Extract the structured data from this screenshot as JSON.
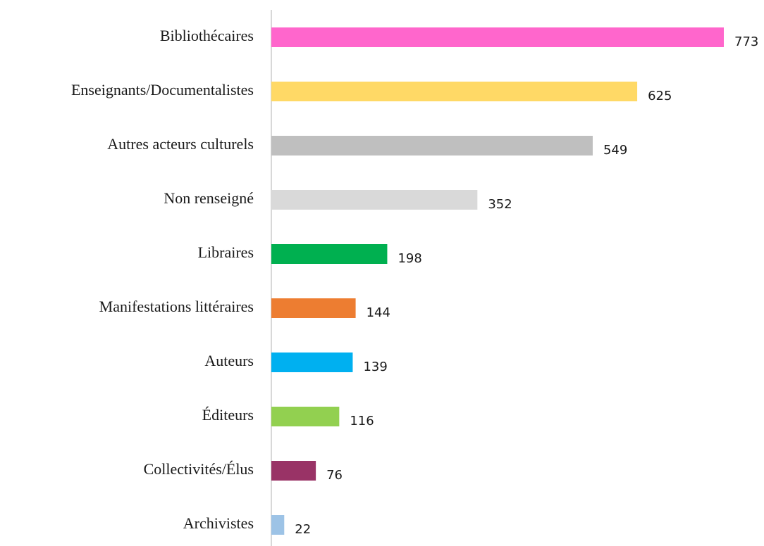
{
  "chart_data": {
    "type": "bar",
    "orientation": "horizontal",
    "categories": [
      "Bibliothécaires",
      "Enseignants/Documentalistes",
      "Autres acteurs culturels",
      "Non renseigné",
      "Libraires",
      "Manifestations littéraires",
      "Auteurs",
      "Éditeurs",
      "Collectivités/Élus",
      "Archivistes"
    ],
    "values": [
      773,
      625,
      549,
      352,
      198,
      144,
      139,
      116,
      76,
      22
    ],
    "colors": [
      "#ff66cc",
      "#ffd966",
      "#bfbfbf",
      "#d9d9d9",
      "#00b050",
      "#ed7d31",
      "#00b0f0",
      "#92d050",
      "#993366",
      "#9dc3e6"
    ],
    "xlim": [
      0,
      773
    ]
  }
}
